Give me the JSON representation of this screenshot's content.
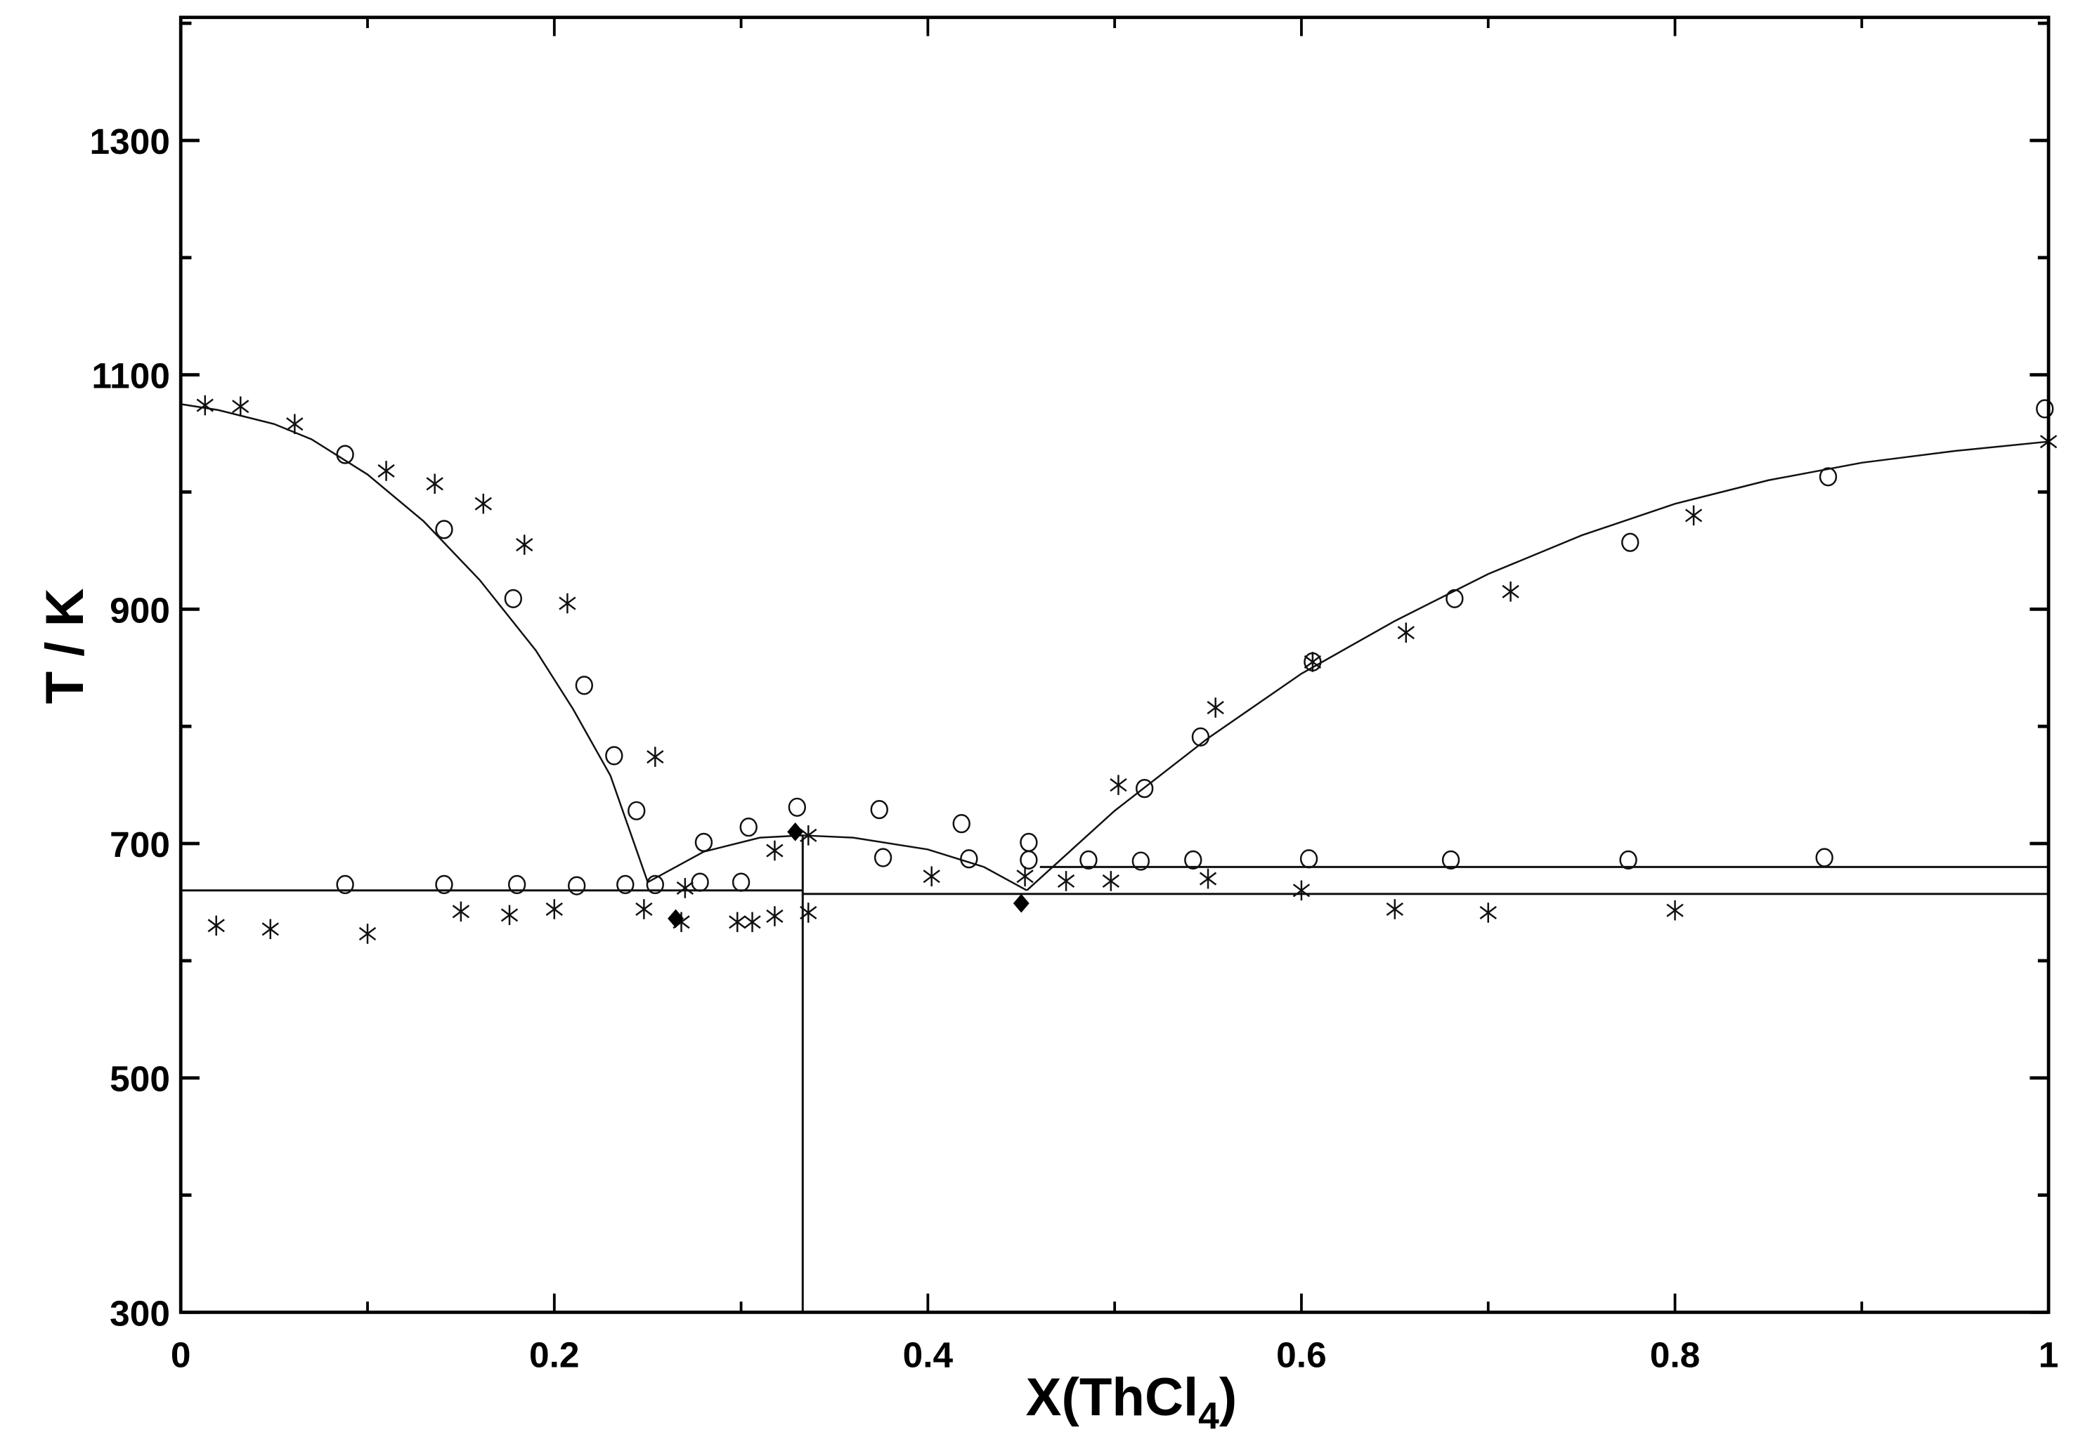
{
  "chart_data": {
    "type": "scatter",
    "title": "",
    "xlabel": "X(ThCl4)",
    "xlabel_main": "X(ThCl",
    "xlabel_sub": "4",
    "xlabel_close": ")",
    "ylabel": "T / K",
    "xlim": [
      0,
      1
    ],
    "ylim": [
      300,
      1400
    ],
    "x_ticks": [
      "0",
      "0.2",
      "0.4",
      "0.6",
      "0.8",
      "1"
    ],
    "y_ticks": [
      "300",
      "500",
      "700",
      "900",
      "1100",
      "1300"
    ],
    "grid": false,
    "legend": "none",
    "series": [
      {
        "name": "calculated liquidus (left branch)",
        "kind": "line",
        "points": [
          [
            0,
            1075
          ],
          [
            0.02,
            1070
          ],
          [
            0.05,
            1058
          ],
          [
            0.07,
            1045
          ],
          [
            0.1,
            1015
          ],
          [
            0.13,
            975
          ],
          [
            0.16,
            925
          ],
          [
            0.19,
            865
          ],
          [
            0.21,
            815
          ],
          [
            0.23,
            758
          ],
          [
            0.25,
            667
          ]
        ]
      },
      {
        "name": "calculated liquidus (compound dome)",
        "kind": "line",
        "points": [
          [
            0.25,
            667
          ],
          [
            0.28,
            693
          ],
          [
            0.31,
            705
          ],
          [
            0.333,
            707
          ],
          [
            0.36,
            705
          ],
          [
            0.4,
            695
          ],
          [
            0.43,
            680
          ],
          [
            0.453,
            660
          ]
        ]
      },
      {
        "name": "calculated liquidus (right branch)",
        "kind": "line",
        "points": [
          [
            0.453,
            660
          ],
          [
            0.5,
            728
          ],
          [
            0.55,
            790
          ],
          [
            0.6,
            845
          ],
          [
            0.65,
            890
          ],
          [
            0.7,
            930
          ],
          [
            0.75,
            963
          ],
          [
            0.8,
            990
          ],
          [
            0.85,
            1010
          ],
          [
            0.9,
            1025
          ],
          [
            0.95,
            1035
          ],
          [
            1.0,
            1043
          ]
        ]
      },
      {
        "name": "eutectic / invariant lines",
        "kind": "line",
        "segments": [
          [
            [
              0,
              660
            ],
            [
              0.333,
              660
            ]
          ],
          [
            [
              0.333,
              657
            ],
            [
              1,
              657
            ]
          ],
          [
            [
              0.46,
              680
            ],
            [
              1,
              680
            ]
          ],
          [
            [
              0.333,
              300
            ],
            [
              0.333,
              707
            ]
          ]
        ]
      },
      {
        "name": "experimental (circles)",
        "kind": "scatter",
        "marker": "circle",
        "points": [
          [
            0.088,
            1032
          ],
          [
            0.141,
            968
          ],
          [
            0.178,
            909
          ],
          [
            0.216,
            835
          ],
          [
            0.232,
            775
          ],
          [
            0.244,
            728
          ],
          [
            0.088,
            665
          ],
          [
            0.141,
            665
          ],
          [
            0.18,
            665
          ],
          [
            0.212,
            664
          ],
          [
            0.238,
            665
          ],
          [
            0.254,
            665
          ],
          [
            0.278,
            667
          ],
          [
            0.28,
            701
          ],
          [
            0.3,
            667
          ],
          [
            0.304,
            714
          ],
          [
            0.33,
            731
          ],
          [
            0.374,
            729
          ],
          [
            0.376,
            688
          ],
          [
            0.418,
            717
          ],
          [
            0.422,
            687
          ],
          [
            0.454,
            701
          ],
          [
            0.454,
            686
          ],
          [
            0.486,
            686
          ],
          [
            0.514,
            685
          ],
          [
            0.516,
            747
          ],
          [
            0.542,
            686
          ],
          [
            0.546,
            791
          ],
          [
            0.604,
            687
          ],
          [
            0.606,
            855
          ],
          [
            0.68,
            686
          ],
          [
            0.682,
            909
          ],
          [
            0.775,
            686
          ],
          [
            0.776,
            957
          ],
          [
            0.88,
            688
          ],
          [
            0.882,
            1013
          ],
          [
            0.998,
            1071
          ]
        ]
      },
      {
        "name": "experimental (asterisks)",
        "kind": "scatter",
        "marker": "asterisk",
        "points": [
          [
            0.013,
            1074
          ],
          [
            0.032,
            1073
          ],
          [
            0.061,
            1058
          ],
          [
            0.11,
            1018
          ],
          [
            0.136,
            1007
          ],
          [
            0.162,
            990
          ],
          [
            0.184,
            955
          ],
          [
            0.207,
            905
          ],
          [
            0.254,
            774
          ],
          [
            0.248,
            644
          ],
          [
            0.019,
            630
          ],
          [
            0.048,
            627
          ],
          [
            0.1,
            623
          ],
          [
            0.15,
            642
          ],
          [
            0.176,
            639
          ],
          [
            0.2,
            644
          ],
          [
            0.27,
            662
          ],
          [
            0.268,
            633
          ],
          [
            0.298,
            633
          ],
          [
            0.306,
            633
          ],
          [
            0.318,
            638
          ],
          [
            0.318,
            694
          ],
          [
            0.336,
            707
          ],
          [
            0.336,
            641
          ],
          [
            0.402,
            672
          ],
          [
            0.452,
            672
          ],
          [
            0.474,
            668
          ],
          [
            0.502,
            750
          ],
          [
            0.498,
            668
          ],
          [
            0.55,
            670
          ],
          [
            0.554,
            816
          ],
          [
            0.6,
            660
          ],
          [
            0.606,
            855
          ],
          [
            0.656,
            880
          ],
          [
            0.65,
            644
          ],
          [
            0.7,
            641
          ],
          [
            0.712,
            915
          ],
          [
            0.8,
            643
          ],
          [
            0.81,
            980
          ],
          [
            1.0,
            1043
          ]
        ]
      },
      {
        "name": "invariant points (diamonds)",
        "kind": "scatter",
        "marker": "diamond-filled",
        "points": [
          [
            0.265,
            636
          ],
          [
            0.329,
            710
          ],
          [
            0.45,
            649
          ]
        ]
      }
    ]
  }
}
